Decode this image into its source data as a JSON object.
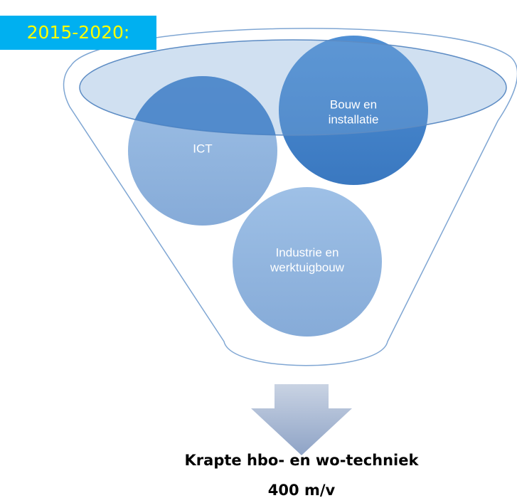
{
  "label": "2015-2020:",
  "nodes": [
    {
      "lines": [
        "ICT"
      ]
    },
    {
      "lines": [
        "Bouw en",
        "installatie"
      ]
    },
    {
      "lines": [
        "Industrie en",
        "werktuigbouw"
      ]
    }
  ],
  "result": {
    "lines": [
      "Krapte hbo- en wo-techniek",
      "400 m/v"
    ]
  }
}
